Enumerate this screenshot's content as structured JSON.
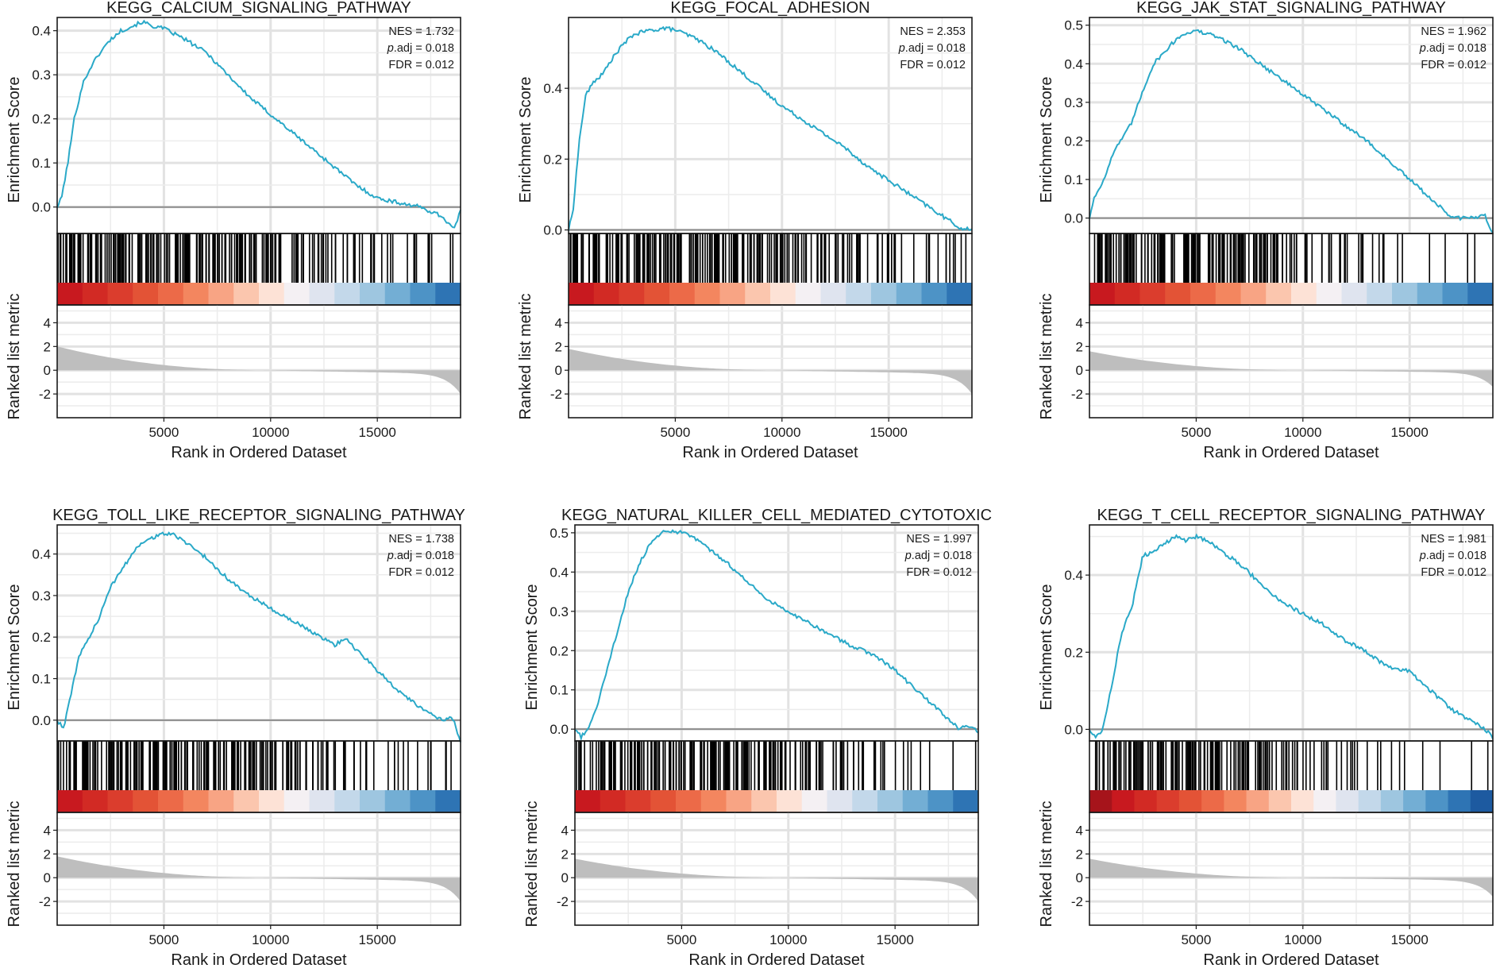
{
  "chart_data": [
    {
      "type": "line",
      "title": "KEGG_CALCIUM_SIGNALING_PATHWAY",
      "ylabel": "Enrichment Score",
      "xlabel": "Rank in Ordered Dataset",
      "ylabel_bottom": "Ranked list metric",
      "stats": {
        "nes": "NES = 1.732",
        "padj_label": "p",
        "padj_value": ".adj = 0.018",
        "fdr": "FDR = 0.012"
      },
      "ylim": [
        -0.06,
        0.43
      ],
      "yticks": [
        0,
        0.1,
        0.2,
        0.3,
        0.4
      ],
      "ytick_labels": [
        "0.0",
        "0.1",
        "0.2",
        "0.3",
        "0.4"
      ],
      "xlim": [
        0,
        18900
      ],
      "xticks": [
        5000,
        10000,
        15000
      ],
      "xtick_labels": [
        "5000",
        "10000",
        "15000"
      ],
      "metric_ticks": [
        4,
        2,
        0,
        -2
      ],
      "metric_tick_labels": [
        "4",
        "2",
        "0",
        "-2"
      ],
      "metric_range": [
        -4,
        5.5
      ],
      "metric_max": 2.0,
      "metric_min": -2.0,
      "es_curve": {
        "x": [
          0,
          200,
          500,
          800,
          1200,
          1600,
          2000,
          2500,
          3000,
          3500,
          4000,
          4500,
          5000,
          6000,
          7000,
          8000,
          9000,
          10000,
          11000,
          12000,
          13000,
          14000,
          15000,
          16000,
          17000,
          18000,
          18600,
          18900
        ],
        "y": [
          0.0,
          0.02,
          0.1,
          0.2,
          0.28,
          0.32,
          0.35,
          0.38,
          0.4,
          0.41,
          0.42,
          0.41,
          0.405,
          0.38,
          0.35,
          0.3,
          0.25,
          0.21,
          0.17,
          0.13,
          0.09,
          0.05,
          0.02,
          0.01,
          0.0,
          -0.02,
          -0.05,
          -0.01
        ]
      },
      "hit_density": [
        1,
        1,
        1,
        1,
        1,
        1,
        1,
        1,
        1,
        0.9,
        0.9,
        0.8,
        0.7,
        0.6,
        0.5,
        0.4,
        0.3,
        0.25,
        0.2,
        0.15
      ],
      "color_bands": [
        "#c8191f",
        "#d22a24",
        "#db3d2d",
        "#e35336",
        "#ec6a48",
        "#f3865f",
        "#f8a484",
        "#fbc6ae",
        "#fde2d6",
        "#f4f0f3",
        "#dfe4ef",
        "#c3d8ea",
        "#9ec6e0",
        "#73aed4",
        "#4d93c6",
        "#2e74b4"
      ]
    },
    {
      "type": "line",
      "title": "KEGG_FOCAL_ADHESION",
      "ylabel": "Enrichment Score",
      "xlabel": "Rank in Ordered Dataset",
      "ylabel_bottom": "Ranked list metric",
      "stats": {
        "nes": "NES = 2.353",
        "padj_label": "p",
        "padj_value": ".adj = 0.018",
        "fdr": "FDR = 0.012"
      },
      "ylim": [
        -0.01,
        0.6
      ],
      "yticks": [
        0,
        0.2,
        0.4
      ],
      "ytick_labels": [
        "0.0",
        "0.2",
        "0.4"
      ],
      "xlim": [
        0,
        18900
      ],
      "xticks": [
        5000,
        10000,
        15000
      ],
      "xtick_labels": [
        "5000",
        "10000",
        "15000"
      ],
      "metric_ticks": [
        4,
        2,
        0,
        -2
      ],
      "metric_tick_labels": [
        "4",
        "2",
        "0",
        "-2"
      ],
      "metric_range": [
        -4,
        5.5
      ],
      "metric_max": 1.8,
      "metric_min": -2.0,
      "es_curve": {
        "x": [
          0,
          200,
          500,
          800,
          1200,
          1600,
          2000,
          2500,
          3000,
          3500,
          4000,
          4500,
          5000,
          6000,
          7000,
          8000,
          9000,
          10000,
          11000,
          12000,
          13000,
          14000,
          15000,
          16000,
          17000,
          18000,
          18500,
          18900
        ],
        "y": [
          0.0,
          0.05,
          0.25,
          0.38,
          0.42,
          0.44,
          0.48,
          0.52,
          0.55,
          0.56,
          0.565,
          0.57,
          0.565,
          0.54,
          0.5,
          0.45,
          0.4,
          0.35,
          0.31,
          0.27,
          0.23,
          0.18,
          0.14,
          0.1,
          0.06,
          0.02,
          0.0,
          0.005
        ]
      },
      "hit_density": [
        1,
        1,
        1,
        1,
        1,
        1,
        1,
        1,
        1,
        1,
        0.9,
        0.8,
        0.7,
        0.6,
        0.5,
        0.45,
        0.4,
        0.35,
        0.3,
        0.3
      ],
      "color_bands": [
        "#c8191f",
        "#d22a24",
        "#db3d2d",
        "#e35336",
        "#ec6a48",
        "#f3865f",
        "#f8a484",
        "#fbc6ae",
        "#fde2d6",
        "#f4f0f3",
        "#dfe4ef",
        "#c3d8ea",
        "#9ec6e0",
        "#73aed4",
        "#4d93c6",
        "#2e74b4"
      ]
    },
    {
      "type": "line",
      "title": "KEGG_JAK_STAT_SIGNALING_PATHWAY",
      "ylabel": "Enrichment Score",
      "xlabel": "Rank in Ordered Dataset",
      "ylabel_bottom": "Ranked list metric",
      "stats": {
        "nes": "NES = 1.962",
        "padj_label": "p",
        "padj_value": ".adj = 0.018",
        "fdr": "FDR = 0.012"
      },
      "ylim": [
        -0.04,
        0.52
      ],
      "yticks": [
        0,
        0.1,
        0.2,
        0.3,
        0.4,
        0.5
      ],
      "ytick_labels": [
        "0.0",
        "0.1",
        "0.2",
        "0.3",
        "0.4",
        "0.5"
      ],
      "xlim": [
        0,
        18900
      ],
      "xticks": [
        5000,
        10000,
        15000
      ],
      "xtick_labels": [
        "5000",
        "10000",
        "15000"
      ],
      "metric_ticks": [
        4,
        2,
        0,
        -2
      ],
      "metric_tick_labels": [
        "4",
        "2",
        "0",
        "-2"
      ],
      "metric_range": [
        -4,
        5.5
      ],
      "metric_max": 1.6,
      "metric_min": -1.4,
      "es_curve": {
        "x": [
          0,
          200,
          500,
          800,
          1200,
          1600,
          2000,
          2500,
          3000,
          3500,
          4000,
          4500,
          5000,
          6000,
          7000,
          8000,
          9000,
          10000,
          11000,
          12000,
          13000,
          14000,
          15000,
          16000,
          17000,
          18000,
          18500,
          18900
        ],
        "y": [
          0.0,
          0.05,
          0.08,
          0.12,
          0.18,
          0.21,
          0.25,
          0.33,
          0.4,
          0.43,
          0.46,
          0.48,
          0.485,
          0.47,
          0.44,
          0.4,
          0.36,
          0.32,
          0.28,
          0.24,
          0.2,
          0.15,
          0.1,
          0.05,
          0.0,
          0.0,
          0.01,
          -0.04
        ]
      },
      "hit_density": [
        1,
        1,
        1,
        1,
        1,
        1,
        1,
        1,
        0.9,
        0.8,
        0.6,
        0.5,
        0.4,
        0.3,
        0.25,
        0.15,
        0.1,
        0.1,
        0.1,
        0.1
      ],
      "color_bands": [
        "#c8191f",
        "#d22a24",
        "#db3d2d",
        "#e35336",
        "#ec6a48",
        "#f3865f",
        "#f8a484",
        "#fbc6ae",
        "#fde2d6",
        "#f4f0f3",
        "#dfe4ef",
        "#c3d8ea",
        "#9ec6e0",
        "#73aed4",
        "#4d93c6",
        "#2e74b4"
      ]
    },
    {
      "type": "line",
      "title": "KEGG_TOLL_LIKE_RECEPTOR_SIGNALING_PATHWAY",
      "ylabel": "Enrichment Score",
      "xlabel": "Rank in Ordered Dataset",
      "ylabel_bottom": "Ranked list metric",
      "stats": {
        "nes": "NES = 1.738",
        "padj_label": "p",
        "padj_value": ".adj = 0.018",
        "fdr": "FDR = 0.012"
      },
      "ylim": [
        -0.05,
        0.47
      ],
      "yticks": [
        0,
        0.1,
        0.2,
        0.3,
        0.4
      ],
      "ytick_labels": [
        "0.0",
        "0.1",
        "0.2",
        "0.3",
        "0.4"
      ],
      "xlim": [
        0,
        18900
      ],
      "xticks": [
        5000,
        10000,
        15000
      ],
      "xtick_labels": [
        "5000",
        "10000",
        "15000"
      ],
      "metric_ticks": [
        4,
        2,
        0,
        -2
      ],
      "metric_tick_labels": [
        "4",
        "2",
        "0",
        "-2"
      ],
      "metric_range": [
        -4,
        5.5
      ],
      "metric_max": 1.8,
      "metric_min": -2.0,
      "es_curve": {
        "x": [
          0,
          300,
          600,
          1000,
          1500,
          2000,
          2500,
          3000,
          3500,
          4000,
          4500,
          5000,
          5500,
          6000,
          7000,
          8000,
          9000,
          10000,
          11000,
          12000,
          13000,
          13500,
          14000,
          15000,
          16000,
          17000,
          18000,
          18500,
          18900
        ],
        "y": [
          0.0,
          -0.02,
          0.05,
          0.15,
          0.2,
          0.25,
          0.32,
          0.36,
          0.4,
          0.43,
          0.44,
          0.45,
          0.445,
          0.43,
          0.39,
          0.34,
          0.3,
          0.27,
          0.24,
          0.21,
          0.18,
          0.2,
          0.17,
          0.12,
          0.07,
          0.03,
          0.0,
          0.01,
          -0.05
        ]
      },
      "hit_density": [
        1,
        1,
        1,
        1,
        1,
        1,
        1,
        1,
        1,
        0.9,
        0.8,
        0.7,
        0.6,
        0.5,
        0.4,
        0.3,
        0.3,
        0.2,
        0.2,
        0.2
      ],
      "color_bands": [
        "#c8191f",
        "#d22a24",
        "#db3d2d",
        "#e35336",
        "#ec6a48",
        "#f3865f",
        "#f8a484",
        "#fbc6ae",
        "#fde2d6",
        "#f4f0f3",
        "#dfe4ef",
        "#c3d8ea",
        "#9ec6e0",
        "#73aed4",
        "#4d93c6",
        "#2e74b4"
      ]
    },
    {
      "type": "line",
      "title": "KEGG_NATURAL_KILLER_CELL_MEDIATED_CYTOTOXIC",
      "ylabel": "Enrichment Score",
      "xlabel": "Rank in Ordered Dataset",
      "ylabel_bottom": "Ranked list metric",
      "stats": {
        "nes": "NES = 1.997",
        "padj_label": "p",
        "padj_value": ".adj = 0.018",
        "fdr": "FDR = 0.012"
      },
      "ylim": [
        -0.03,
        0.52
      ],
      "yticks": [
        0,
        0.1,
        0.2,
        0.3,
        0.4,
        0.5
      ],
      "ytick_labels": [
        "0.0",
        "0.1",
        "0.2",
        "0.3",
        "0.4",
        "0.5"
      ],
      "xlim": [
        0,
        18900
      ],
      "xticks": [
        5000,
        10000,
        15000
      ],
      "xtick_labels": [
        "5000",
        "10000",
        "15000"
      ],
      "metric_ticks": [
        4,
        2,
        0,
        -2
      ],
      "metric_tick_labels": [
        "4",
        "2",
        "0",
        "-2"
      ],
      "metric_range": [
        -4,
        5.5
      ],
      "metric_max": 1.6,
      "metric_min": -2.0,
      "es_curve": {
        "x": [
          0,
          300,
          600,
          1000,
          1500,
          2000,
          2500,
          3000,
          3500,
          4000,
          4500,
          5000,
          5500,
          6000,
          7000,
          8000,
          9000,
          10000,
          11000,
          12000,
          13000,
          14000,
          15000,
          16000,
          17000,
          18000,
          18500,
          18900
        ],
        "y": [
          0.0,
          -0.02,
          0.0,
          0.05,
          0.15,
          0.25,
          0.35,
          0.42,
          0.47,
          0.5,
          0.505,
          0.5,
          0.49,
          0.47,
          0.43,
          0.38,
          0.33,
          0.3,
          0.27,
          0.24,
          0.21,
          0.19,
          0.15,
          0.1,
          0.05,
          0.0,
          0.01,
          -0.01
        ]
      },
      "hit_density": [
        0.5,
        1,
        1,
        1,
        1,
        1,
        1,
        1,
        1,
        0.9,
        0.8,
        0.7,
        0.6,
        0.5,
        0.4,
        0.3,
        0.2,
        0.15,
        0.1,
        0.1
      ],
      "color_bands": [
        "#c8191f",
        "#d22a24",
        "#db3d2d",
        "#e35336",
        "#ec6a48",
        "#f3865f",
        "#f8a484",
        "#fbc6ae",
        "#fde2d6",
        "#f4f0f3",
        "#dfe4ef",
        "#c3d8ea",
        "#9ec6e0",
        "#73aed4",
        "#4d93c6",
        "#2e74b4"
      ]
    },
    {
      "type": "line",
      "title": "KEGG_T_CELL_RECEPTOR_SIGNALING_PATHWAY",
      "ylabel": "Enrichment Score",
      "xlabel": "Rank in Ordered Dataset",
      "ylabel_bottom": "Ranked list metric",
      "stats": {
        "nes": "NES = 1.981",
        "padj_label": "p",
        "padj_value": ".adj = 0.018",
        "fdr": "FDR = 0.012"
      },
      "ylim": [
        -0.03,
        0.53
      ],
      "yticks": [
        0,
        0.2,
        0.4
      ],
      "ytick_labels": [
        "0.0",
        "0.2",
        "0.4"
      ],
      "xlim": [
        0,
        18900
      ],
      "xticks": [
        5000,
        10000,
        15000
      ],
      "xtick_labels": [
        "5000",
        "10000",
        "15000"
      ],
      "metric_ticks": [
        4,
        2,
        0,
        -2
      ],
      "metric_tick_labels": [
        "4",
        "2",
        "0",
        "-2"
      ],
      "metric_range": [
        -4,
        5.5
      ],
      "metric_max": 1.6,
      "metric_min": -1.6,
      "es_curve": {
        "x": [
          0,
          300,
          600,
          1000,
          1500,
          2000,
          2500,
          3000,
          3500,
          4000,
          4500,
          5000,
          5500,
          6000,
          7000,
          8000,
          9000,
          10000,
          11000,
          12000,
          13000,
          14000,
          15000,
          16000,
          17000,
          18000,
          18500,
          18900
        ],
        "y": [
          0.0,
          -0.02,
          0.0,
          0.1,
          0.25,
          0.32,
          0.45,
          0.46,
          0.48,
          0.5,
          0.49,
          0.5,
          0.49,
          0.47,
          0.43,
          0.38,
          0.33,
          0.3,
          0.27,
          0.23,
          0.2,
          0.16,
          0.15,
          0.1,
          0.05,
          0.02,
          0.0,
          -0.02
        ]
      },
      "hit_density": [
        0.6,
        0.9,
        1,
        1,
        1,
        1,
        1,
        0.9,
        0.8,
        0.6,
        0.5,
        0.4,
        0.3,
        0.25,
        0.2,
        0.15,
        0.1,
        0.1,
        0.1,
        0.05
      ],
      "color_bands": [
        "#a6141b",
        "#c8191f",
        "#d22a24",
        "#db3d2d",
        "#e35336",
        "#ec6a48",
        "#f3865f",
        "#f8a484",
        "#fbc6ae",
        "#fde2d6",
        "#f4f0f3",
        "#dfe4ef",
        "#c3d8ea",
        "#9ec6e0",
        "#73aed4",
        "#4d93c6",
        "#2e74b4",
        "#1d5aa0"
      ]
    }
  ]
}
